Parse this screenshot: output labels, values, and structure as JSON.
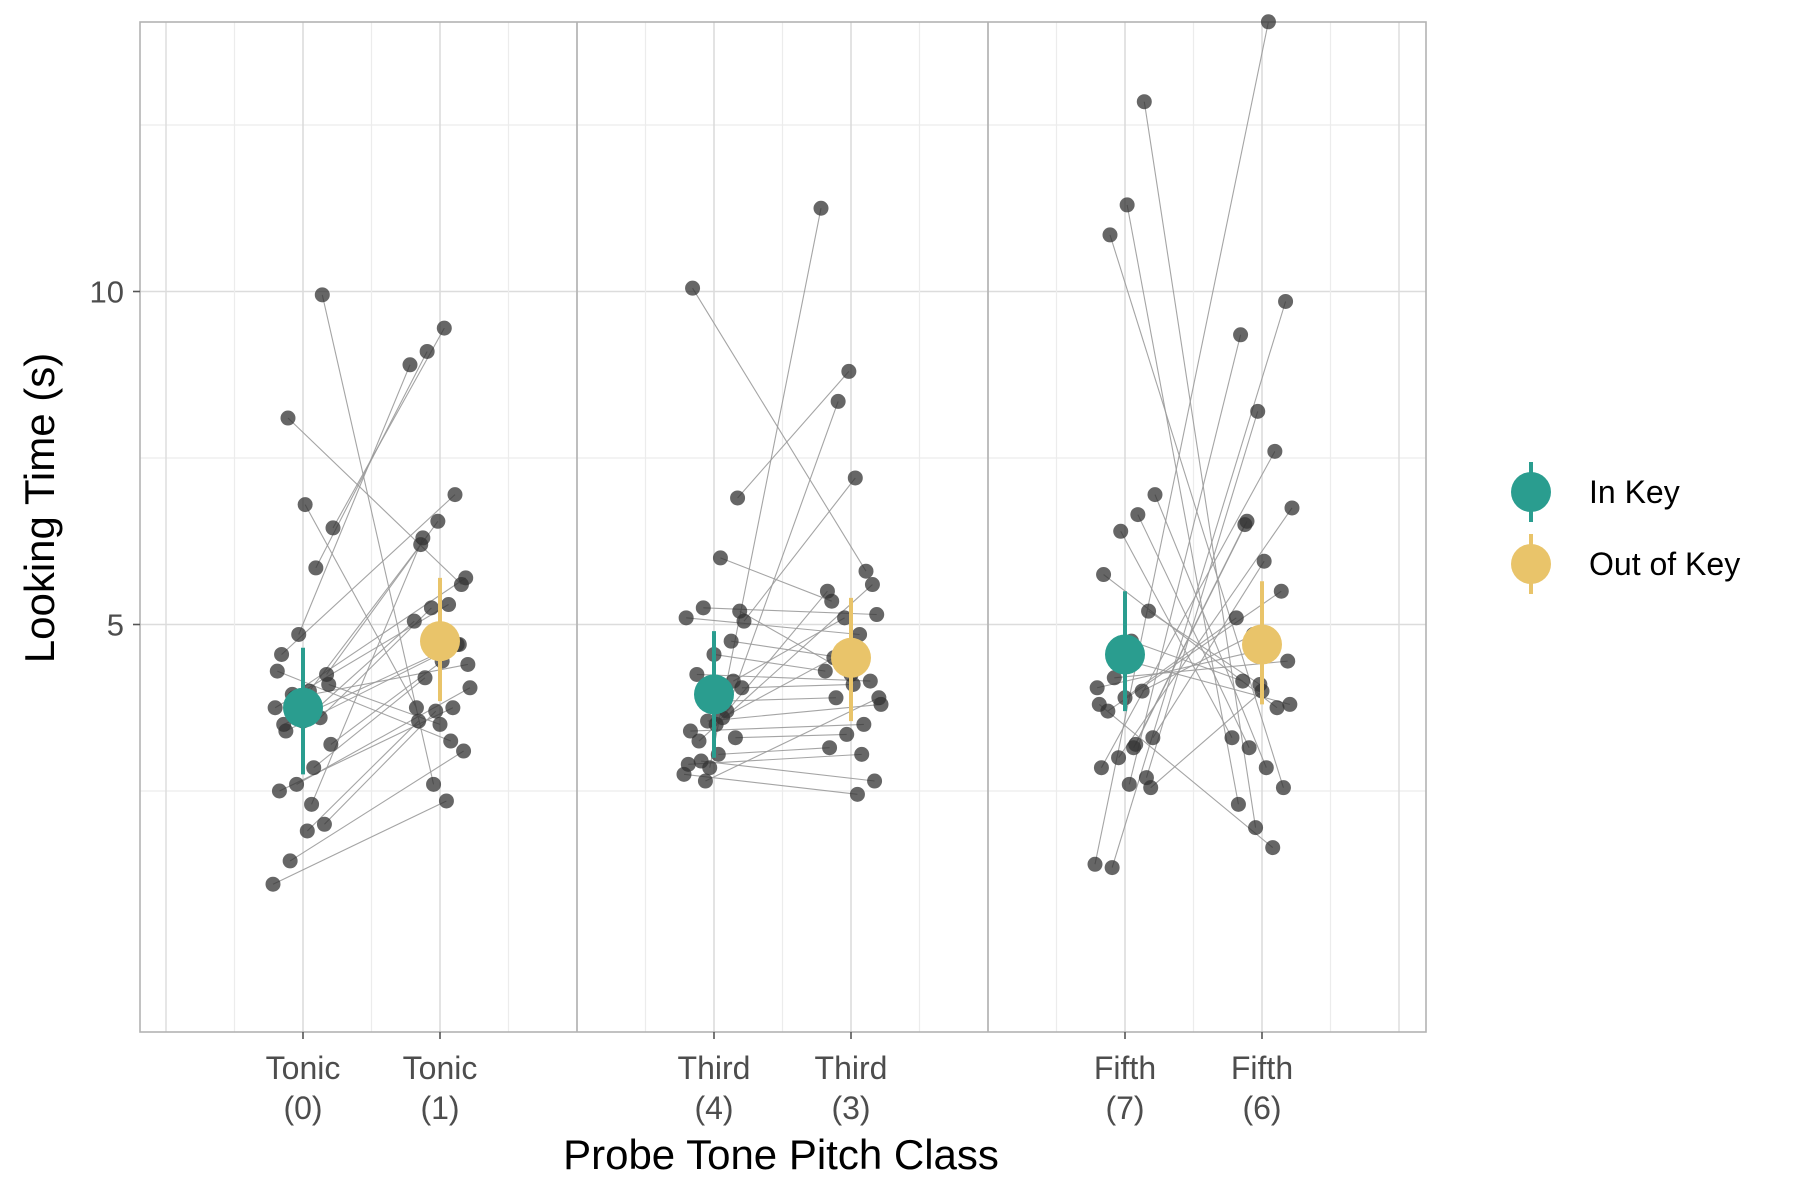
{
  "chart_data": {
    "type": "scatter",
    "subtype": "paired dot plot with mean and error bars",
    "xlabel": "Probe Tone Pitch Class",
    "ylabel": "Looking Time (s)",
    "ylim": [
      0,
      15
    ],
    "yticks": [
      5,
      10,
      15
    ],
    "grid": true,
    "legend_position": "right",
    "significance_marker": "*",
    "colors": {
      "in_key": "#2a9d8f",
      "out_key": "#e9c46a",
      "points": "#333333",
      "lines": "#9a9a9a"
    },
    "legend": [
      {
        "name": "In Key",
        "color": "#2a9d8f"
      },
      {
        "name": "Out of Key",
        "color": "#e9c46a"
      }
    ],
    "panels": [
      {
        "categories": [
          {
            "line1": "Tonic",
            "line2": "(0)"
          },
          {
            "line1": "Tonic",
            "line2": "(1)"
          }
        ],
        "summary": [
          {
            "series": "In Key",
            "mean": 3.75,
            "lower": 2.75,
            "upper": 4.65
          },
          {
            "series": "Out of Key",
            "mean": 4.75,
            "lower": 3.85,
            "upper": 5.7
          }
        ],
        "significant": true,
        "pairs": [
          [
            1.1,
            2.35
          ],
          [
            1.45,
            3.1
          ],
          [
            1.9,
            3.55
          ],
          [
            2.0,
            3.7
          ],
          [
            2.5,
            3.75
          ],
          [
            2.6,
            4.05
          ],
          [
            2.85,
            4.2
          ],
          [
            3.2,
            4.45
          ],
          [
            3.4,
            4.7
          ],
          [
            3.55,
            5.05
          ],
          [
            3.6,
            5.25
          ],
          [
            3.75,
            5.3
          ],
          [
            3.95,
            5.7
          ],
          [
            4.0,
            6.2
          ],
          [
            4.25,
            6.55
          ],
          [
            4.55,
            6.95
          ],
          [
            4.85,
            8.9
          ],
          [
            5.85,
            9.1
          ],
          [
            6.45,
            9.45
          ],
          [
            8.1,
            5.6
          ],
          [
            6.8,
            3.75
          ],
          [
            9.95,
            2.6
          ],
          [
            4.3,
            3.25
          ],
          [
            3.9,
            4.4
          ],
          [
            2.3,
            6.3
          ],
          [
            4.1,
            3.5
          ],
          [
            3.5,
            4.7
          ]
        ]
      },
      {
        "categories": [
          {
            "line1": "Third",
            "line2": "(4)"
          },
          {
            "line1": "Third",
            "line2": "(3)"
          }
        ],
        "summary": [
          {
            "series": "In Key",
            "mean": 3.95,
            "lower": 3.0,
            "upper": 4.9
          },
          {
            "series": "Out of Key",
            "mean": 4.5,
            "lower": 3.55,
            "upper": 5.4
          }
        ],
        "significant": false,
        "pairs": [
          [
            2.75,
            2.45
          ],
          [
            2.95,
            2.65
          ],
          [
            3.05,
            3.15
          ],
          [
            3.3,
            3.35
          ],
          [
            3.4,
            3.5
          ],
          [
            3.55,
            3.8
          ],
          [
            3.85,
            3.9
          ],
          [
            4.05,
            4.1
          ],
          [
            4.25,
            4.15
          ],
          [
            4.55,
            4.3
          ],
          [
            4.75,
            4.5
          ],
          [
            5.1,
            4.85
          ],
          [
            5.25,
            5.15
          ],
          [
            6.0,
            5.35
          ],
          [
            6.9,
            8.8
          ],
          [
            10.05,
            5.8
          ],
          [
            2.85,
            11.25
          ],
          [
            3.7,
            8.35
          ],
          [
            5.05,
            7.2
          ],
          [
            3.25,
            5.6
          ],
          [
            3.5,
            5.5
          ],
          [
            4.15,
            5.1
          ],
          [
            2.9,
            3.05
          ],
          [
            2.65,
            3.9
          ],
          [
            3.6,
            4.5
          ],
          [
            5.2,
            4.25
          ]
        ]
      },
      {
        "categories": [
          {
            "line1": "Fifth",
            "line2": "(7)"
          },
          {
            "line1": "Fifth",
            "line2": "(6)"
          }
        ],
        "summary": [
          {
            "series": "In Key",
            "mean": 4.55,
            "lower": 3.7,
            "upper": 5.5
          },
          {
            "series": "Out of Key",
            "mean": 4.7,
            "lower": 3.8,
            "upper": 5.65
          }
        ],
        "significant": false,
        "pairs": [
          [
            1.4,
            14.05
          ],
          [
            1.35,
            9.85
          ],
          [
            2.6,
            9.35
          ],
          [
            2.7,
            8.2
          ],
          [
            2.85,
            7.6
          ],
          [
            3.0,
            6.75
          ],
          [
            3.2,
            6.55
          ],
          [
            3.3,
            5.95
          ],
          [
            3.7,
            5.5
          ],
          [
            3.9,
            5.1
          ],
          [
            4.0,
            4.85
          ],
          [
            4.05,
            4.65
          ],
          [
            4.2,
            4.45
          ],
          [
            4.75,
            4.15
          ],
          [
            5.2,
            4.1
          ],
          [
            5.75,
            3.75
          ],
          [
            6.4,
            3.3
          ],
          [
            6.65,
            3.15
          ],
          [
            6.95,
            2.85
          ],
          [
            10.85,
            2.55
          ],
          [
            11.3,
            2.3
          ],
          [
            12.85,
            1.95
          ],
          [
            3.8,
            1.65
          ],
          [
            4.5,
            3.8
          ],
          [
            3.15,
            6.5
          ],
          [
            2.55,
            4.0
          ]
        ]
      }
    ]
  }
}
